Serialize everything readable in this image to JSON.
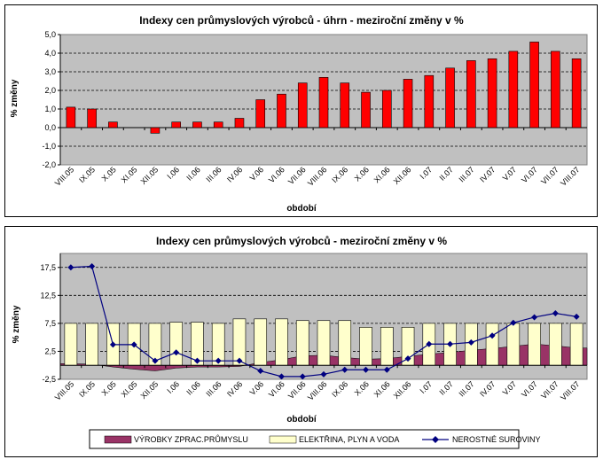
{
  "charts": {
    "top": {
      "title": "Indexy cen průmyslových výrobců - úhrn - meziroční změny v %",
      "xlabel": "období",
      "ylabel": "% změny",
      "ytick_labels": [
        "5,0",
        "4,0",
        "3,0",
        "2,0",
        "1,0",
        "0,0",
        "-1,0",
        "-2,0"
      ],
      "colors": {
        "bar": "#ff0000",
        "plot_bg": "#c0c0c0"
      }
    },
    "bottom": {
      "title": "Indexy cen průmyslových výrobců - meziroční změny v %",
      "xlabel": "období",
      "ylabel": "% změny",
      "ytick_labels": [
        "17,5",
        "12,5",
        "7,5",
        "2,5",
        "-2,5"
      ],
      "legend": {
        "s1": "VÝROBKY ZPRAC.PRŮMYSLU",
        "s2": "ELEKTŘINA, PLYN A  VODA",
        "s3": "NEROSTNÉ  SUROVINY"
      },
      "colors": {
        "area": "#993366",
        "bar": "#ffffcc",
        "line": "#000080",
        "plot_bg": "#c0c0c0"
      }
    }
  },
  "chart_data": [
    {
      "type": "bar",
      "title": "Indexy cen průmyslových výrobců - úhrn - meziroční změny v %",
      "xlabel": "období",
      "ylabel": "% změny",
      "ylim": [
        -2.0,
        5.0
      ],
      "grid": true,
      "categories": [
        "VIII.05",
        "IX.05",
        "X.05",
        "XI.05",
        "XII.05",
        "I.06",
        "II.06",
        "III.06",
        "IV.06",
        "V.06",
        "VI.06",
        "VII.06",
        "VIII.06",
        "IX.06",
        "X.06",
        "XI.06",
        "XII.06",
        "I.07",
        "II.07",
        "III.07",
        "IV.07",
        "V.07",
        "VI.07",
        "VII.07",
        "VIII.07"
      ],
      "values": [
        1.1,
        1.0,
        0.3,
        0.0,
        -0.3,
        0.3,
        0.3,
        0.3,
        0.5,
        1.5,
        1.8,
        2.4,
        2.7,
        2.4,
        1.9,
        2.0,
        2.6,
        2.8,
        3.2,
        3.6,
        3.7,
        4.1,
        4.6,
        4.1,
        3.7
      ]
    },
    {
      "type": "bar",
      "title": "Indexy cen průmyslových výrobců - meziroční změny v %",
      "xlabel": "období",
      "ylabel": "% změny",
      "ylim": [
        -2.5,
        20.0
      ],
      "grid": true,
      "legend_position": "bottom",
      "categories": [
        "VIII.05",
        "IX.05",
        "X.05",
        "XI.05",
        "XII.05",
        "I.06",
        "II.06",
        "III.06",
        "IV.06",
        "V.06",
        "VI.06",
        "VII.06",
        "VIII.06",
        "IX.06",
        "X.06",
        "XI.06",
        "XII.06",
        "I.07",
        "II.07",
        "III.07",
        "IV.07",
        "V.07",
        "VI.07",
        "VII.07",
        "VIII.07"
      ],
      "series": [
        {
          "name": "VÝROBKY ZPRAC.PRŮMYSLU",
          "kind": "area",
          "values": [
            0.3,
            0.2,
            -0.3,
            -0.7,
            -1.0,
            -0.5,
            -0.3,
            -0.3,
            -0.2,
            0.5,
            1.0,
            1.7,
            1.8,
            1.4,
            1.1,
            1.2,
            1.6,
            2.0,
            2.3,
            2.7,
            3.0,
            3.4,
            3.8,
            3.5,
            3.1
          ]
        },
        {
          "name": "ELEKTŘINA, PLYN A  VODA",
          "kind": "bar",
          "values": [
            7.5,
            7.5,
            7.5,
            7.5,
            7.5,
            7.7,
            7.7,
            7.5,
            8.3,
            8.3,
            8.3,
            8.0,
            8.0,
            8.0,
            6.8,
            6.8,
            6.8,
            7.5,
            7.5,
            7.5,
            7.5,
            7.5,
            7.5,
            7.5,
            7.5
          ]
        },
        {
          "name": "NEROSTNÉ  SUROVINY",
          "kind": "line",
          "values": [
            17.5,
            17.7,
            3.7,
            3.7,
            0.8,
            2.3,
            0.8,
            0.8,
            0.8,
            -1.0,
            -2.0,
            -2.0,
            -1.6,
            -0.8,
            -0.8,
            -0.8,
            1.2,
            3.8,
            3.8,
            4.1,
            5.3,
            7.6,
            8.6,
            9.3,
            8.7
          ]
        }
      ]
    }
  ]
}
